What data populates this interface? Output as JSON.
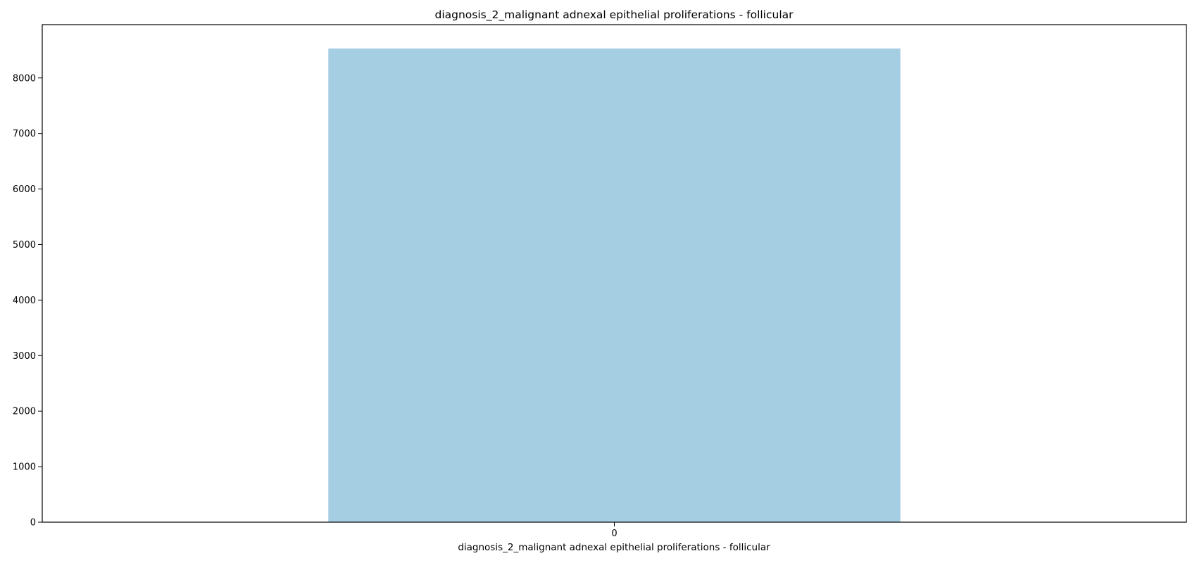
{
  "chart_data": {
    "type": "bar",
    "title": "diagnosis_2_malignant adnexal epithelial proliferations - follicular",
    "xlabel": "diagnosis_2_malignant adnexal epithelial proliferations - follicular",
    "ylabel": "",
    "categories": [
      "0"
    ],
    "values": [
      8531
    ],
    "ylim": [
      0,
      8960
    ],
    "yticks": [
      0,
      1000,
      2000,
      3000,
      4000,
      5000,
      6000,
      7000,
      8000
    ],
    "grid": false,
    "legend": "none",
    "bar_color": "#a6cee3"
  }
}
